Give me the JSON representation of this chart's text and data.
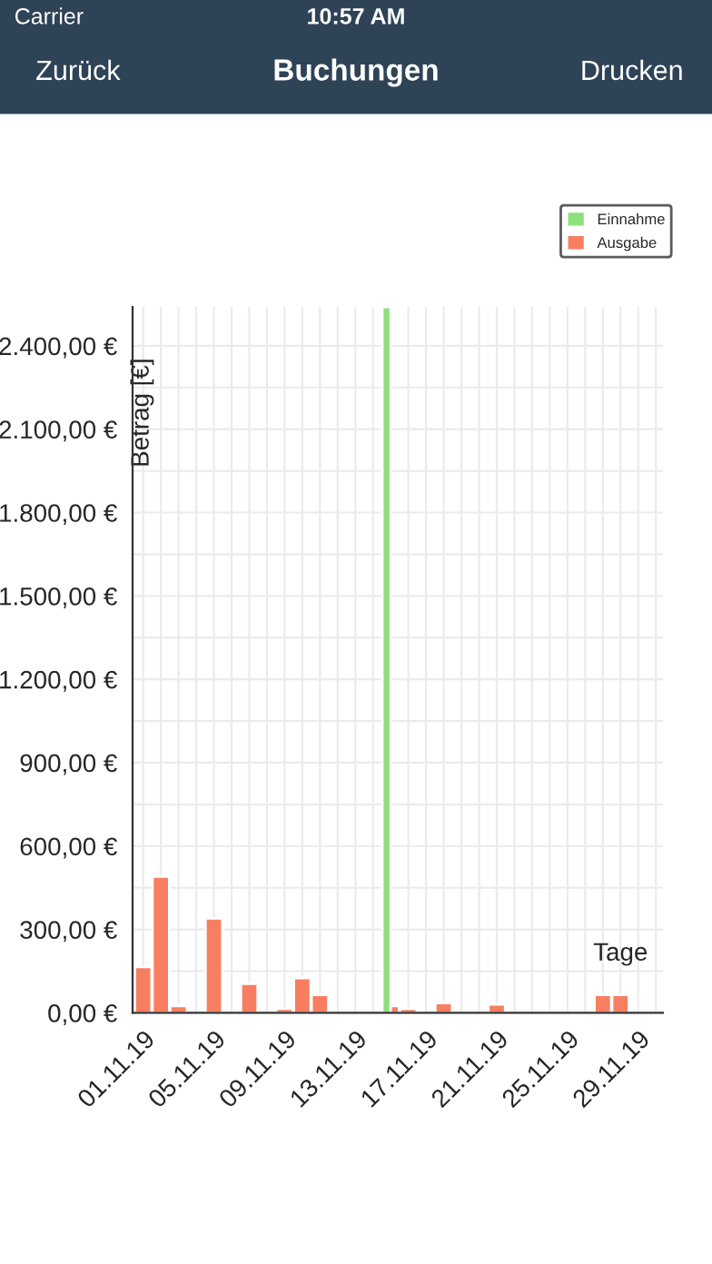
{
  "chart_data": {
    "type": "bar",
    "title": "Buchungen",
    "annotations": [
      "Carrier",
      "10:57 AM",
      "Zurück",
      "Drucken"
    ],
    "xlabel": "Tage",
    "ylabel": "Betrag [€]",
    "categories": [
      "01.11.19",
      null,
      null,
      null,
      "05.11.19",
      null,
      null,
      null,
      "09.11.19",
      null,
      null,
      null,
      "13.11.19",
      null,
      null,
      null,
      "17.11.19",
      null,
      null,
      null,
      "21.11.19",
      null,
      null,
      null,
      "25.11.19",
      null,
      null,
      null,
      "29.11.19",
      null
    ],
    "series": [
      {
        "name": "Einnahme",
        "color": "#8ee07a",
        "values": [
          null,
          null,
          null,
          null,
          null,
          null,
          null,
          null,
          null,
          null,
          null,
          null,
          null,
          null,
          2540,
          null,
          null,
          null,
          null,
          null,
          null,
          null,
          null,
          null,
          null,
          null,
          null,
          null,
          null,
          null
        ]
      },
      {
        "name": "Ausgabe",
        "color": "#f77e61",
        "values": [
          165,
          490,
          25,
          null,
          340,
          null,
          105,
          null,
          15,
          125,
          65,
          null,
          null,
          null,
          25,
          15,
          null,
          35,
          null,
          null,
          30,
          null,
          null,
          null,
          null,
          null,
          65,
          65,
          null,
          null
        ]
      }
    ],
    "ylim": [
      0,
      2540
    ],
    "yticks": [
      {
        "value": 0,
        "label": "0,00 €"
      },
      {
        "value": 150,
        "label": null
      },
      {
        "value": 300,
        "label": "300,00 €"
      },
      {
        "value": 450,
        "label": null
      },
      {
        "value": 600,
        "label": "600,00 €"
      },
      {
        "value": 750,
        "label": null
      },
      {
        "value": 900,
        "label": "900,00 €"
      },
      {
        "value": 1050,
        "label": null
      },
      {
        "value": 1200,
        "label": "1.200,00 €"
      },
      {
        "value": 1350,
        "label": null
      },
      {
        "value": 1500,
        "label": "1.500,00 €"
      },
      {
        "value": 1650,
        "label": null
      },
      {
        "value": 1800,
        "label": "1.800,00 €"
      },
      {
        "value": 1950,
        "label": null
      },
      {
        "value": 2100,
        "label": "2.100,00 €"
      },
      {
        "value": 2250,
        "label": null
      },
      {
        "value": 2400,
        "label": "2.400,00 €"
      }
    ],
    "grid": true,
    "legend": "top right"
  }
}
